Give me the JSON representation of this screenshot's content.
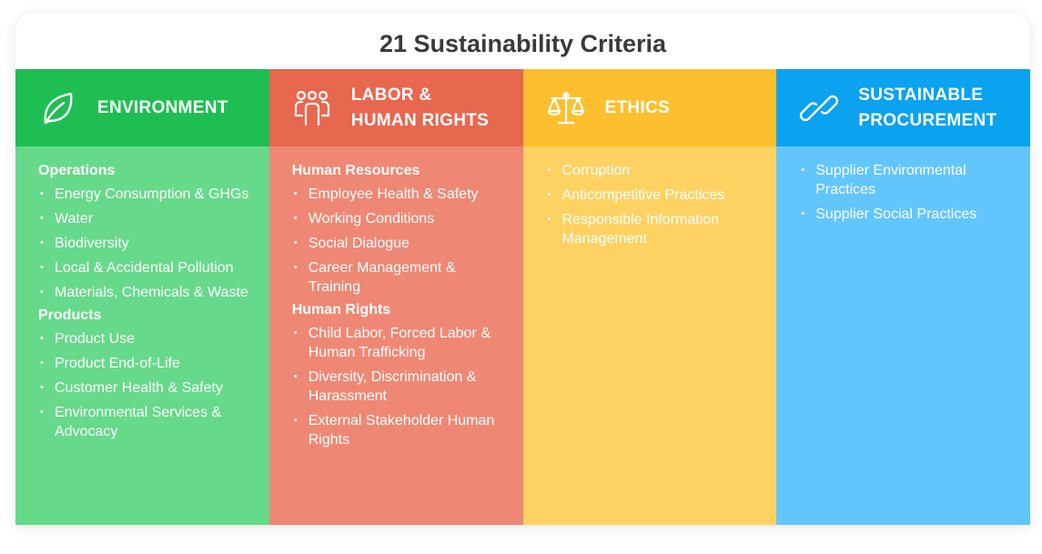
{
  "title": "21 Sustainability Criteria",
  "colors": {
    "environment": "#1fbe52",
    "labor": "#e8674f",
    "ethics": "#fcbf2e",
    "procurement": "#0ba2ef"
  },
  "columns": [
    {
      "icon": "leaf-icon",
      "heading": [
        "ENVIRONMENT"
      ],
      "sections": [
        {
          "title": "Operations",
          "items": [
            "Energy Consumption & GHGs",
            "Water",
            "Biodiversity",
            "Local & Accidental Pollution",
            "Materials, Chemicals & Waste"
          ]
        },
        {
          "title": "Products",
          "items": [
            "Product Use",
            "Product End-of-Life",
            "Customer Health & Safety",
            "Environmental Services & Advocacy"
          ]
        }
      ]
    },
    {
      "icon": "people-icon",
      "heading": [
        "LABOR &",
        "HUMAN RIGHTS"
      ],
      "sections": [
        {
          "title": "Human Resources",
          "items": [
            "Employee Health & Safety",
            "Working Conditions",
            "Social Dialogue",
            "Career Management & Training"
          ]
        },
        {
          "title": "Human Rights",
          "items": [
            "Child Labor, Forced Labor & Human Trafficking",
            "Diversity, Discrimination & Harassment",
            "External Stakeholder Human Rights"
          ]
        }
      ]
    },
    {
      "icon": "scales-icon",
      "heading": [
        "ETHICS"
      ],
      "sections": [
        {
          "title": "",
          "items": [
            "Corruption",
            "Anticompetitive Practices",
            "Responsible Information Management"
          ]
        }
      ]
    },
    {
      "icon": "link-icon",
      "heading": [
        "SUSTAINABLE",
        "PROCUREMENT"
      ],
      "sections": [
        {
          "title": "",
          "items": [
            "Supplier Environmental Practices",
            "Supplier Social Practices"
          ]
        }
      ]
    }
  ]
}
